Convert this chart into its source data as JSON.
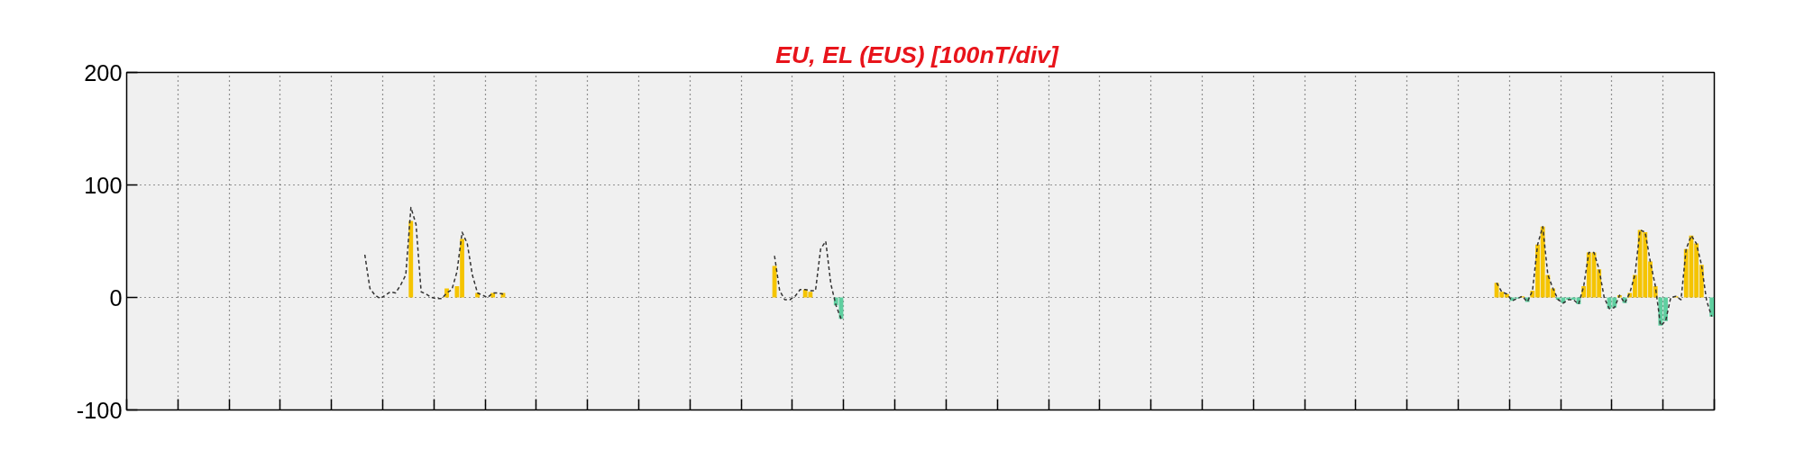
{
  "chart_data": {
    "type": "bar",
    "title": "EU, EL (EUS)  [100nT/div]",
    "categories": [
      null,
      null,
      null,
      null,
      null,
      null,
      null,
      null,
      null,
      null,
      null,
      null,
      null,
      null,
      null,
      null,
      null,
      null,
      null,
      null,
      null,
      null,
      null,
      null,
      null,
      null,
      null,
      null,
      null,
      null,
      null,
      null,
      null,
      null,
      null,
      null,
      null,
      null,
      null,
      null,
      null,
      null,
      null,
      null,
      null,
      null,
      null,
      null,
      null,
      null,
      null,
      null,
      null,
      null,
      null,
      null,
      null,
      null,
      null,
      null,
      null,
      null,
      null,
      null,
      null,
      null,
      null,
      null,
      null,
      null,
      null,
      null,
      null,
      null,
      null,
      null,
      null,
      null,
      null,
      null,
      null,
      null,
      null,
      null,
      null,
      null,
      null,
      null,
      null,
      null,
      null,
      null,
      null,
      null,
      null,
      null,
      null,
      null,
      null,
      null,
      null,
      null,
      null,
      null,
      null,
      null,
      null,
      null,
      null,
      null,
      null,
      null,
      null,
      null,
      null,
      null,
      null,
      null,
      null,
      null,
      null,
      null,
      null,
      null,
      null,
      null,
      null,
      null,
      null,
      null,
      null,
      null,
      null,
      null,
      null,
      null,
      null,
      null,
      null,
      null,
      null,
      null,
      null,
      null,
      null,
      null,
      null,
      null,
      null,
      null,
      null,
      null,
      null,
      null,
      null,
      null,
      null,
      null,
      null,
      null,
      null,
      null,
      null,
      null,
      null,
      null,
      null,
      null,
      null,
      null,
      null,
      null,
      null,
      null,
      null,
      null,
      null,
      null,
      null,
      null,
      null,
      null,
      null,
      null,
      null,
      null,
      null,
      null,
      null,
      null,
      null,
      null,
      null,
      null,
      null,
      null,
      null,
      null,
      null,
      null,
      null,
      null,
      null,
      null,
      null,
      null,
      null,
      null,
      null,
      null,
      null,
      null,
      null,
      null,
      null,
      null,
      null,
      null,
      null,
      null,
      null,
      null,
      null,
      null,
      null,
      null,
      null,
      null,
      null,
      null,
      null,
      null,
      null,
      null,
      null,
      null,
      null,
      null,
      null,
      null,
      null,
      null,
      null,
      null,
      null,
      null,
      null,
      null,
      null,
      null,
      null,
      null,
      null,
      null,
      null,
      null,
      null,
      null,
      null,
      null,
      null,
      null,
      null,
      null,
      null,
      null,
      null,
      null,
      null,
      null,
      null,
      null,
      null,
      null,
      null,
      null,
      null,
      null,
      null,
      null,
      null,
      null,
      null,
      null,
      null,
      null,
      null,
      null,
      null,
      null,
      null,
      null,
      null,
      null,
      null,
      null,
      null,
      null,
      null,
      null,
      null,
      null,
      null,
      null,
      null,
      null,
      null,
      null,
      null,
      null
    ],
    "ylim": [
      -100,
      200
    ],
    "yticks": [
      -100,
      0,
      100,
      200
    ],
    "tick_labels": "y",
    "grid": true,
    "series": [
      {
        "color": "#f5c400",
        "values": [
          null,
          null,
          null,
          null,
          null,
          null,
          null,
          null,
          null,
          null,
          null,
          null,
          null,
          null,
          null,
          null,
          null,
          null,
          null,
          null,
          null,
          null,
          null,
          null,
          null,
          null,
          null,
          null,
          null,
          null,
          null,
          null,
          null,
          null,
          null,
          null,
          null,
          null,
          null,
          null,
          null,
          null,
          null,
          null,
          null,
          null,
          null,
          null,
          null,
          null,
          null,
          null,
          null,
          null,
          null,
          68,
          null,
          null,
          null,
          null,
          null,
          null,
          8,
          null,
          10,
          52,
          null,
          null,
          4,
          null,
          null,
          4,
          null,
          4,
          null,
          null,
          null,
          null,
          null,
          null,
          null,
          null,
          null,
          null,
          null,
          null,
          null,
          null,
          null,
          null,
          null,
          null,
          null,
          null,
          null,
          null,
          null,
          null,
          null,
          null,
          null,
          null,
          null,
          null,
          null,
          null,
          null,
          null,
          null,
          null,
          null,
          null,
          null,
          null,
          null,
          null,
          null,
          null,
          null,
          null,
          null,
          null,
          null,
          null,
          null,
          null,
          28,
          null,
          null,
          null,
          null,
          null,
          7,
          5,
          null,
          null,
          null,
          null,
          null,
          null,
          null,
          null,
          null,
          null,
          null,
          null,
          null,
          null,
          null,
          null,
          null,
          null,
          null,
          null,
          null,
          null,
          null,
          null,
          null,
          null,
          null,
          null,
          null,
          null,
          null,
          null,
          null,
          null,
          null,
          null,
          null,
          null,
          null,
          null,
          null,
          null,
          null,
          null,
          null,
          null,
          null,
          null,
          null,
          null,
          null,
          null,
          null,
          null,
          null,
          null,
          null,
          null,
          null,
          null,
          null,
          null,
          null,
          null,
          null,
          null,
          null,
          null,
          null,
          null,
          null,
          null,
          null,
          null,
          null,
          null,
          null,
          null,
          null,
          null,
          null,
          null,
          null,
          null,
          null,
          null,
          null,
          null,
          null,
          null,
          null,
          null,
          null,
          null,
          null,
          null,
          null,
          null,
          null,
          null,
          null,
          null,
          null,
          null,
          null,
          null,
          null,
          null,
          null,
          null,
          null,
          null,
          null,
          null,
          null,
          null,
          null,
          null,
          null,
          null,
          null,
          null,
          null,
          null,
          null,
          null,
          null,
          null,
          null,
          null,
          null,
          null,
          null,
          13,
          5,
          3,
          null,
          null,
          1,
          null,
          6,
          47,
          63,
          20,
          8,
          null,
          null,
          null,
          null,
          null,
          10,
          40,
          40,
          25,
          null,
          null,
          null,
          2,
          null,
          4,
          20,
          60,
          58,
          32,
          10,
          null,
          null,
          null,
          1,
          null,
          43,
          55,
          48,
          29,
          null,
          null
        ]
      },
      {
        "color": "#5fcfa0",
        "values": [
          null,
          null,
          null,
          null,
          null,
          null,
          null,
          null,
          null,
          null,
          null,
          null,
          null,
          null,
          null,
          null,
          null,
          null,
          null,
          null,
          null,
          null,
          null,
          null,
          null,
          null,
          null,
          null,
          null,
          null,
          null,
          null,
          null,
          null,
          null,
          null,
          null,
          null,
          null,
          null,
          null,
          null,
          null,
          null,
          null,
          null,
          null,
          null,
          null,
          null,
          null,
          null,
          null,
          null,
          null,
          null,
          null,
          null,
          null,
          null,
          null,
          null,
          null,
          null,
          null,
          null,
          null,
          null,
          null,
          null,
          null,
          null,
          null,
          null,
          null,
          null,
          null,
          null,
          null,
          null,
          null,
          null,
          null,
          null,
          null,
          null,
          null,
          null,
          null,
          null,
          null,
          null,
          null,
          null,
          null,
          null,
          null,
          null,
          null,
          null,
          null,
          null,
          null,
          null,
          null,
          null,
          null,
          null,
          null,
          null,
          null,
          null,
          null,
          null,
          null,
          null,
          null,
          null,
          null,
          null,
          null,
          null,
          null,
          null,
          null,
          null,
          null,
          null,
          null,
          null,
          null,
          null,
          null,
          null,
          null,
          null,
          null,
          null,
          -7,
          -19,
          null,
          null,
          null,
          null,
          null,
          null,
          null,
          null,
          null,
          null,
          null,
          null,
          null,
          null,
          null,
          null,
          null,
          null,
          null,
          null,
          null,
          null,
          null,
          null,
          null,
          null,
          null,
          null,
          null,
          null,
          null,
          null,
          null,
          null,
          null,
          null,
          null,
          null,
          null,
          null,
          null,
          null,
          null,
          null,
          null,
          null,
          null,
          null,
          null,
          null,
          null,
          null,
          null,
          null,
          null,
          null,
          null,
          null,
          null,
          null,
          null,
          null,
          null,
          null,
          null,
          null,
          null,
          null,
          null,
          null,
          null,
          null,
          null,
          null,
          null,
          null,
          null,
          null,
          null,
          null,
          null,
          null,
          null,
          null,
          null,
          null,
          null,
          null,
          null,
          null,
          null,
          null,
          null,
          null,
          null,
          null,
          null,
          null,
          null,
          null,
          null,
          null,
          null,
          null,
          null,
          null,
          null,
          null,
          null,
          null,
          null,
          null,
          null,
          null,
          null,
          null,
          null,
          null,
          null,
          null,
          null,
          null,
          null,
          null,
          null,
          null,
          null,
          null,
          null,
          null,
          -3,
          -1,
          null,
          -4,
          null,
          null,
          null,
          null,
          null,
          -2,
          -5,
          -2,
          -2,
          -6,
          null,
          null,
          null,
          null,
          null,
          -10,
          -9,
          null,
          -5,
          null,
          null,
          null,
          null,
          null,
          null,
          -25,
          -21,
          null,
          null,
          null,
          null,
          null,
          null,
          null,
          null,
          -17
        ]
      },
      {
        "type": "line",
        "color": "#333333",
        "line_style": "dashed",
        "values": [
          null,
          null,
          null,
          null,
          null,
          null,
          null,
          null,
          null,
          null,
          null,
          null,
          null,
          null,
          null,
          null,
          null,
          null,
          null,
          null,
          null,
          null,
          null,
          null,
          null,
          null,
          null,
          null,
          null,
          null,
          null,
          null,
          null,
          null,
          null,
          null,
          null,
          null,
          null,
          null,
          null,
          null,
          null,
          null,
          null,
          null,
          38,
          8,
          2,
          -1,
          2,
          5,
          4,
          11,
          20,
          80,
          65,
          5,
          3,
          0,
          -1,
          -1,
          4,
          7,
          23,
          58,
          48,
          20,
          4,
          2,
          0,
          4,
          4,
          3,
          null,
          null,
          null,
          null,
          null,
          null,
          null,
          null,
          null,
          null,
          null,
          null,
          null,
          null,
          null,
          null,
          null,
          null,
          null,
          null,
          null,
          null,
          null,
          null,
          null,
          null,
          null,
          null,
          null,
          null,
          null,
          null,
          null,
          null,
          null,
          null,
          null,
          null,
          null,
          null,
          null,
          null,
          null,
          null,
          null,
          null,
          null,
          null,
          null,
          null,
          null,
          null,
          37,
          6,
          -2,
          -2,
          1,
          7,
          7,
          6,
          6,
          43,
          50,
          12,
          -7,
          -19,
          null,
          null,
          null,
          null,
          null,
          null,
          null,
          null,
          null,
          null,
          null,
          null,
          null,
          null,
          null,
          null,
          null,
          null,
          null,
          null,
          null,
          null,
          null,
          null,
          null,
          null,
          null,
          null,
          null,
          null,
          null,
          null,
          null,
          null,
          null,
          null,
          null,
          null,
          null,
          null,
          null,
          null,
          null,
          null,
          null,
          null,
          null,
          null,
          null,
          null,
          null,
          null,
          null,
          null,
          null,
          null,
          null,
          null,
          null,
          null,
          null,
          null,
          null,
          null,
          null,
          null,
          null,
          null,
          null,
          null,
          null,
          null,
          null,
          null,
          null,
          null,
          null,
          null,
          null,
          null,
          null,
          null,
          null,
          null,
          null,
          null,
          null,
          null,
          null,
          null,
          null,
          null,
          null,
          null,
          null,
          null,
          null,
          null,
          null,
          null,
          null,
          null,
          null,
          null,
          null,
          null,
          null,
          null,
          null,
          null,
          null,
          null,
          null,
          null,
          null,
          null,
          null,
          null,
          null,
          null,
          null,
          null,
          null,
          null,
          null,
          null,
          null,
          13,
          5,
          3,
          -3,
          -1,
          1,
          -4,
          6,
          47,
          63,
          20,
          8,
          -2,
          -5,
          -2,
          -2,
          -6,
          10,
          40,
          40,
          25,
          0,
          -10,
          -9,
          2,
          -5,
          4,
          20,
          60,
          58,
          32,
          10,
          -25,
          -21,
          0,
          1,
          -2,
          43,
          55,
          48,
          29,
          -3,
          -17
        ]
      }
    ]
  }
}
